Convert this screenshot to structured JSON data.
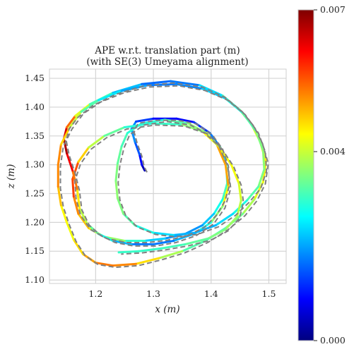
{
  "chart_data": {
    "type": "line",
    "title": "APE w.r.t. translation part (m)",
    "subtitle": "(with SE(3) Umeyama alignment)",
    "xlabel": "x (m)",
    "ylabel": "z (m)",
    "xlim": [
      1.12,
      1.53
    ],
    "ylim": [
      1.094,
      1.466
    ],
    "x_ticks": [
      "1.2",
      "1.3",
      "1.4",
      "1.5"
    ],
    "x_tick_values": [
      1.2,
      1.3,
      1.4,
      1.5
    ],
    "y_ticks": [
      "1.10",
      "1.15",
      "1.20",
      "1.25",
      "1.30",
      "1.35",
      "1.40",
      "1.45"
    ],
    "y_tick_values": [
      1.1,
      1.15,
      1.2,
      1.25,
      1.3,
      1.35,
      1.4,
      1.45
    ],
    "grid": true,
    "colorbar": {
      "colormap": "jet",
      "min": 0.0,
      "max": 0.007,
      "tick_labels": [
        "0.000",
        "0.004",
        "0.007"
      ],
      "tick_values": [
        0.0,
        0.004,
        0.007
      ]
    },
    "reference_style": {
      "color": "#808080",
      "dash": "dashed"
    },
    "trajectory": [
      [
        1.285,
        1.29,
        0.0002
      ],
      [
        1.28,
        1.3,
        0.0006
      ],
      [
        1.276,
        1.318,
        0.0012
      ],
      [
        1.268,
        1.34,
        0.0017
      ],
      [
        1.262,
        1.362,
        0.002
      ],
      [
        1.27,
        1.375,
        0.0016
      ],
      [
        1.3,
        1.38,
        0.001
      ],
      [
        1.34,
        1.38,
        0.0008
      ],
      [
        1.37,
        1.374,
        0.001
      ],
      [
        1.398,
        1.355,
        0.0014
      ],
      [
        1.416,
        1.33,
        0.002
      ],
      [
        1.426,
        1.3,
        0.0027
      ],
      [
        1.428,
        1.268,
        0.0032
      ],
      [
        1.42,
        1.24,
        0.003
      ],
      [
        1.405,
        1.215,
        0.0025
      ],
      [
        1.385,
        1.195,
        0.002
      ],
      [
        1.355,
        1.18,
        0.0018
      ],
      [
        1.32,
        1.172,
        0.002
      ],
      [
        1.285,
        1.168,
        0.0026
      ],
      [
        1.25,
        1.168,
        0.0033
      ],
      [
        1.215,
        1.175,
        0.004
      ],
      [
        1.188,
        1.19,
        0.0046
      ],
      [
        1.17,
        1.215,
        0.005
      ],
      [
        1.162,
        1.245,
        0.0054
      ],
      [
        1.16,
        1.275,
        0.006
      ],
      [
        1.17,
        1.305,
        0.0052
      ],
      [
        1.188,
        1.33,
        0.0042
      ],
      [
        1.215,
        1.35,
        0.0036
      ],
      [
        1.25,
        1.365,
        0.003
      ],
      [
        1.3,
        1.372,
        0.0028
      ],
      [
        1.35,
        1.37,
        0.0032
      ],
      [
        1.385,
        1.358,
        0.004
      ],
      [
        1.41,
        1.335,
        0.0048
      ],
      [
        1.425,
        1.3,
        0.0052
      ],
      [
        1.43,
        1.262,
        0.0048
      ],
      [
        1.42,
        1.228,
        0.004
      ],
      [
        1.4,
        1.2,
        0.0032
      ],
      [
        1.37,
        1.18,
        0.0024
      ],
      [
        1.335,
        1.168,
        0.0018
      ],
      [
        1.3,
        1.162,
        0.0016
      ],
      [
        1.262,
        1.162,
        0.0018
      ],
      [
        1.23,
        1.168,
        0.0024
      ],
      [
        1.205,
        1.18,
        0.003
      ],
      [
        1.185,
        1.198,
        0.0036
      ],
      [
        1.172,
        1.225,
        0.0042
      ],
      [
        1.168,
        1.258,
        0.0048
      ],
      [
        1.16,
        1.29,
        0.0058
      ],
      [
        1.15,
        1.32,
        0.0066
      ],
      [
        1.145,
        1.345,
        0.0068
      ],
      [
        1.15,
        1.365,
        0.006
      ],
      [
        1.165,
        1.385,
        0.0048
      ],
      [
        1.19,
        1.405,
        0.0036
      ],
      [
        1.23,
        1.425,
        0.0026
      ],
      [
        1.28,
        1.44,
        0.0018
      ],
      [
        1.33,
        1.445,
        0.0014
      ],
      [
        1.38,
        1.438,
        0.002
      ],
      [
        1.42,
        1.42,
        0.0028
      ],
      [
        1.45,
        1.395,
        0.0034
      ],
      [
        1.47,
        1.37,
        0.0038
      ],
      [
        1.485,
        1.34,
        0.0044
      ],
      [
        1.495,
        1.305,
        0.0046
      ],
      [
        1.49,
        1.27,
        0.0044
      ],
      [
        1.475,
        1.24,
        0.004
      ],
      [
        1.455,
        1.215,
        0.0036
      ],
      [
        1.425,
        1.19,
        0.0032
      ],
      [
        1.39,
        1.168,
        0.003
      ],
      [
        1.35,
        1.15,
        0.0034
      ],
      [
        1.31,
        1.138,
        0.0042
      ],
      [
        1.27,
        1.128,
        0.005
      ],
      [
        1.23,
        1.125,
        0.0054
      ],
      [
        1.2,
        1.13,
        0.0052
      ],
      [
        1.178,
        1.145,
        0.0048
      ],
      [
        1.162,
        1.17,
        0.0044
      ],
      [
        1.15,
        1.2,
        0.0042
      ],
      [
        1.14,
        1.23,
        0.0046
      ],
      [
        1.135,
        1.262,
        0.005
      ],
      [
        1.135,
        1.3,
        0.0054
      ],
      [
        1.14,
        1.335,
        0.005
      ],
      [
        1.155,
        1.365,
        0.0044
      ],
      [
        1.175,
        1.392,
        0.0036
      ],
      [
        1.205,
        1.412,
        0.0028
      ],
      [
        1.245,
        1.428,
        0.0022
      ],
      [
        1.29,
        1.438,
        0.0018
      ],
      [
        1.34,
        1.44,
        0.0016
      ],
      [
        1.385,
        1.432,
        0.002
      ],
      [
        1.425,
        1.415,
        0.0026
      ],
      [
        1.455,
        1.39,
        0.003
      ],
      [
        1.478,
        1.358,
        0.0034
      ],
      [
        1.49,
        1.325,
        0.0036
      ],
      [
        1.492,
        1.292,
        0.0036
      ],
      [
        1.482,
        1.262,
        0.0034
      ],
      [
        1.462,
        1.238,
        0.003
      ],
      [
        1.438,
        1.215,
        0.0026
      ],
      [
        1.408,
        1.195,
        0.0022
      ],
      [
        1.372,
        1.182,
        0.002
      ],
      [
        1.335,
        1.178,
        0.0022
      ],
      [
        1.3,
        1.182,
        0.0026
      ],
      [
        1.268,
        1.195,
        0.003
      ],
      [
        1.248,
        1.215,
        0.0034
      ],
      [
        1.238,
        1.242,
        0.0036
      ],
      [
        1.235,
        1.272,
        0.0036
      ],
      [
        1.238,
        1.302,
        0.0034
      ],
      [
        1.245,
        1.332,
        0.0032
      ],
      [
        1.255,
        1.355,
        0.003
      ],
      [
        1.28,
        1.372,
        0.0028
      ],
      [
        1.32,
        1.378,
        0.003
      ],
      [
        1.36,
        1.372,
        0.0034
      ],
      [
        1.392,
        1.355,
        0.0038
      ],
      [
        1.415,
        1.33,
        0.0042
      ],
      [
        1.435,
        1.3,
        0.0044
      ],
      [
        1.448,
        1.268,
        0.0042
      ],
      [
        1.452,
        1.238,
        0.004
      ],
      [
        1.445,
        1.21,
        0.0038
      ],
      [
        1.425,
        1.188,
        0.0036
      ],
      [
        1.395,
        1.172,
        0.0034
      ],
      [
        1.355,
        1.162,
        0.0032
      ],
      [
        1.315,
        1.155,
        0.003
      ],
      [
        1.275,
        1.15,
        0.003
      ],
      [
        1.24,
        1.148,
        0.003
      ]
    ]
  }
}
